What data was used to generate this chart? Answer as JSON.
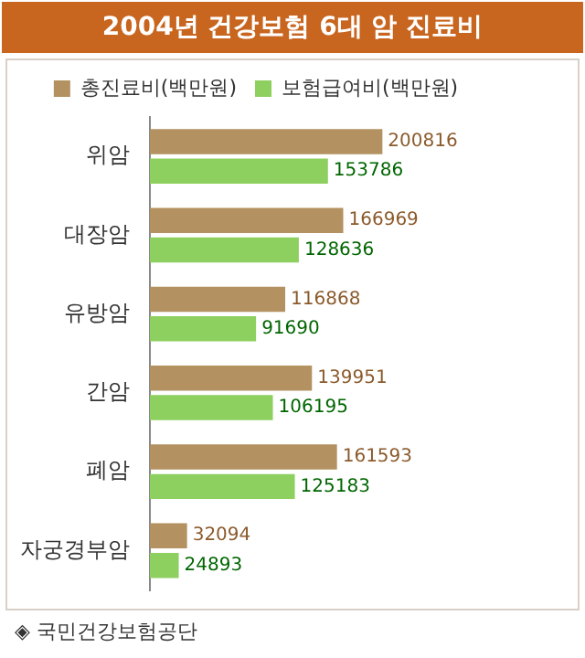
{
  "chart_data": {
    "type": "bar",
    "orientation": "horizontal",
    "title": "2004년 건강보험 6대 암 진료비",
    "categories": [
      "위암",
      "대장암",
      "유방암",
      "간암",
      "폐암",
      "자궁경부암"
    ],
    "series": [
      {
        "name": "총진료비(백만원)",
        "color": "#b39160",
        "values": [
          200816,
          166969,
          116868,
          139951,
          161593,
          32094
        ]
      },
      {
        "name": "보험급여비(백만원)",
        "color": "#8ed05f",
        "values": [
          153786,
          128636,
          91690,
          106195,
          125183,
          24893
        ]
      }
    ],
    "data_labels": true,
    "grid": false,
    "legend": "top",
    "tick_labels": "y",
    "annotations": [
      "◈ 국민건강보험공단"
    ]
  }
}
